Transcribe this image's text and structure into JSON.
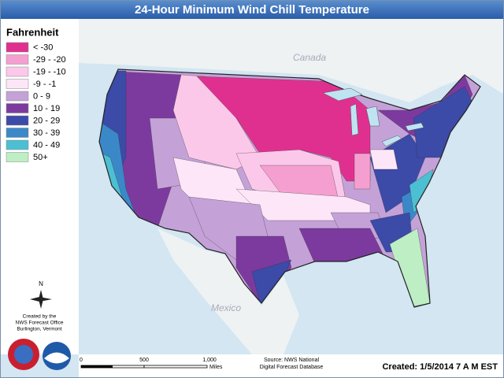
{
  "title": "24-Hour Minimum Wind Chill Temperature",
  "legend": {
    "title": "Fahrenheit",
    "items": [
      {
        "label": "< -30",
        "color": "#e0308f"
      },
      {
        "label": "-29 - -20",
        "color": "#f59fd0"
      },
      {
        "label": "-19 - -10",
        "color": "#fbc8ea"
      },
      {
        "label": "-9 - -1",
        "color": "#fde6f7"
      },
      {
        "label": "0 - 9",
        "color": "#c4a2d8"
      },
      {
        "label": "10 - 19",
        "color": "#7d3a9e"
      },
      {
        "label": "20 - 29",
        "color": "#3c4aa8"
      },
      {
        "label": "30 - 39",
        "color": "#3b88c9"
      },
      {
        "label": "40 - 49",
        "color": "#4cbfd2"
      },
      {
        "label": "50+",
        "color": "#bdeec4"
      }
    ]
  },
  "places": {
    "canada": "Canada",
    "mexico": "Mexico"
  },
  "compass": "N",
  "credit": [
    "Created by the",
    "NWS Forecast Office",
    "Burlington, Vermont"
  ],
  "scale": {
    "ticks": [
      "0",
      "500",
      "1,000"
    ],
    "unit": "Miles"
  },
  "source": [
    "Source: NWS National",
    "Digital Forecast Database"
  ],
  "created": "Created: 1/5/2014 7 A M EST"
}
